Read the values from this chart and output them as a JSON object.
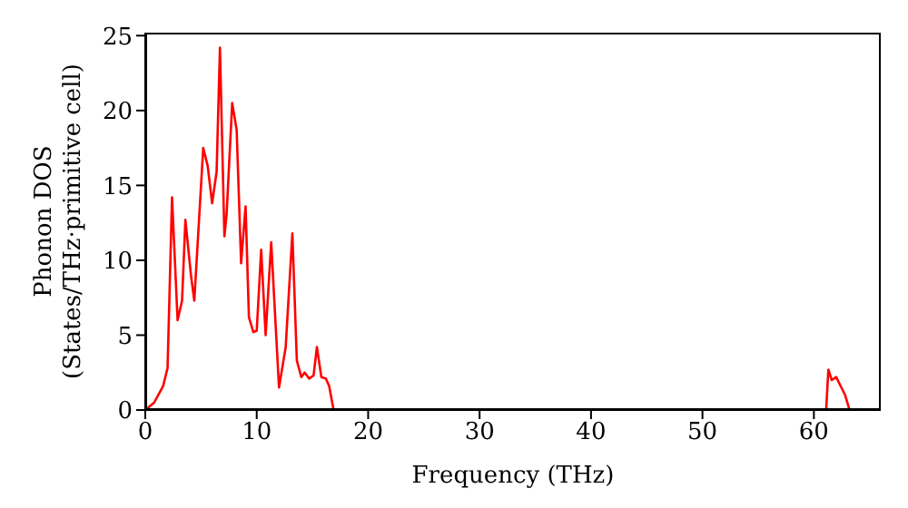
{
  "chart_data": {
    "type": "line",
    "xlabel": "Frequency (THz)",
    "ylabel": "Phonon DOS\n(States/THz·primitive cell)",
    "x": [
      0,
      0.8,
      1.6,
      2.0,
      2.4,
      2.9,
      3.3,
      3.6,
      4.1,
      4.4,
      5.2,
      5.6,
      6.0,
      6.4,
      6.7,
      7.1,
      7.3,
      7.8,
      8.2,
      8.6,
      9.0,
      9.3,
      9.7,
      10.0,
      10.4,
      10.8,
      11.3,
      12.0,
      12.6,
      13.2,
      13.6,
      14.0,
      14.3,
      14.7,
      15.1,
      15.4,
      15.8,
      16.2,
      16.5,
      16.9,
      61.1,
      61.3,
      61.6,
      62.0,
      62.8,
      63.2,
      66
    ],
    "series": [
      {
        "color": "#ff0000",
        "values": [
          0,
          0.5,
          1.6,
          2.8,
          14.2,
          6.0,
          7.3,
          12.7,
          9.0,
          7.3,
          17.5,
          16.3,
          13.8,
          15.9,
          24.2,
          11.6,
          13.1,
          20.5,
          18.7,
          9.8,
          13.6,
          6.2,
          5.2,
          5.3,
          10.7,
          5.0,
          11.2,
          1.5,
          4.2,
          11.8,
          3.3,
          2.2,
          2.5,
          2.1,
          2.3,
          4.2,
          2.2,
          2.1,
          1.6,
          0,
          0,
          2.7,
          2.0,
          2.2,
          1.0,
          0,
          0
        ]
      }
    ],
    "xlim": [
      0,
      66
    ],
    "xticks": [
      0,
      10,
      20,
      30,
      40,
      50,
      60
    ],
    "ylim": [
      0,
      25.2
    ],
    "yticks": [
      0,
      5,
      10,
      15,
      20,
      25
    ],
    "grid": false,
    "marker": "none",
    "line_style": "solid"
  }
}
